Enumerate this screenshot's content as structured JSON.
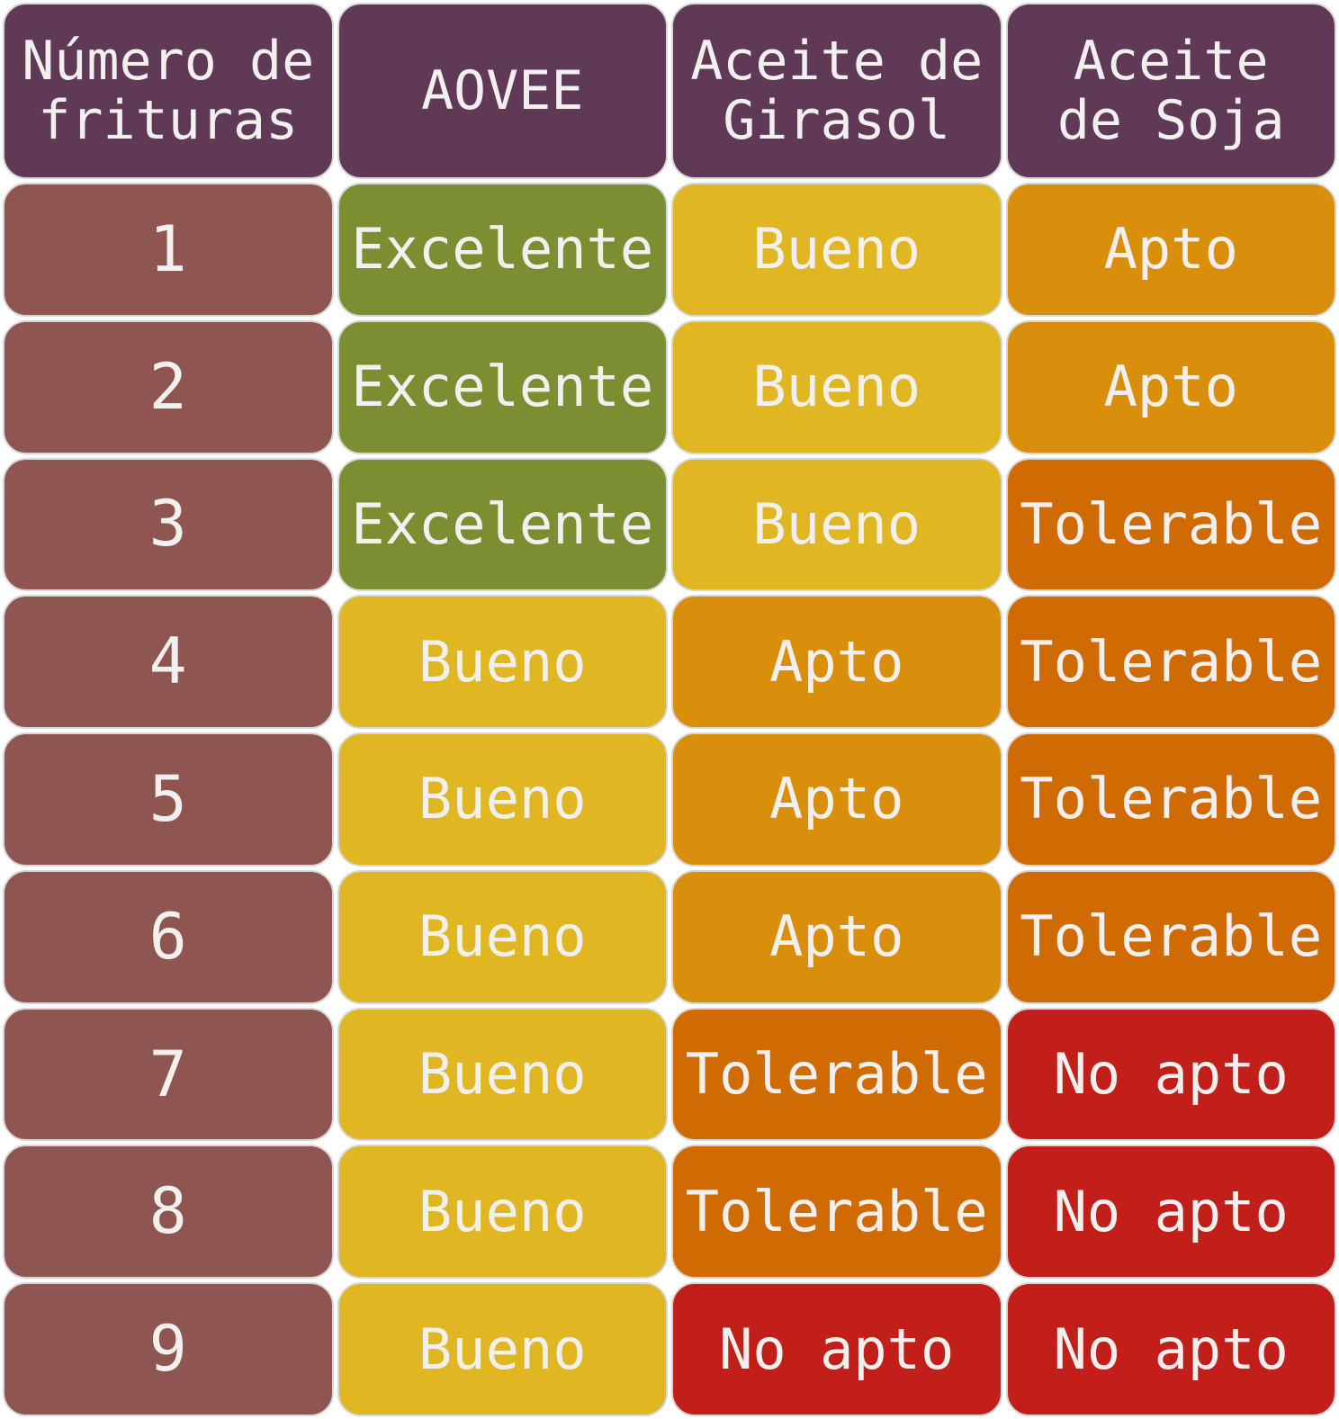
{
  "chart_data": {
    "type": "table",
    "columns": [
      "Número de\nfrituras",
      "AOVEE",
      "Aceite de\nGirasol",
      "Aceite\nde Soja"
    ],
    "rows": [
      [
        "1",
        "Excelente",
        "Bueno",
        "Apto"
      ],
      [
        "2",
        "Excelente",
        "Bueno",
        "Apto"
      ],
      [
        "3",
        "Excelente",
        "Bueno",
        "Tolerable"
      ],
      [
        "4",
        "Bueno",
        "Apto",
        "Tolerable"
      ],
      [
        "5",
        "Bueno",
        "Apto",
        "Tolerable"
      ],
      [
        "6",
        "Bueno",
        "Apto",
        "Tolerable"
      ],
      [
        "7",
        "Bueno",
        "Tolerable",
        "No apto"
      ],
      [
        "8",
        "Bueno",
        "Tolerable",
        "No apto"
      ],
      [
        "9",
        "Bueno",
        "No apto",
        "No apto"
      ]
    ],
    "colors": {
      "header": "#5f3955",
      "row_label": "#8f5550",
      "Excelente": "#7b8f32",
      "Bueno": "#e0b722",
      "Apto": "#d98f0b",
      "Tolerable": "#d06b04",
      "No apto": "#c21e1a"
    }
  }
}
